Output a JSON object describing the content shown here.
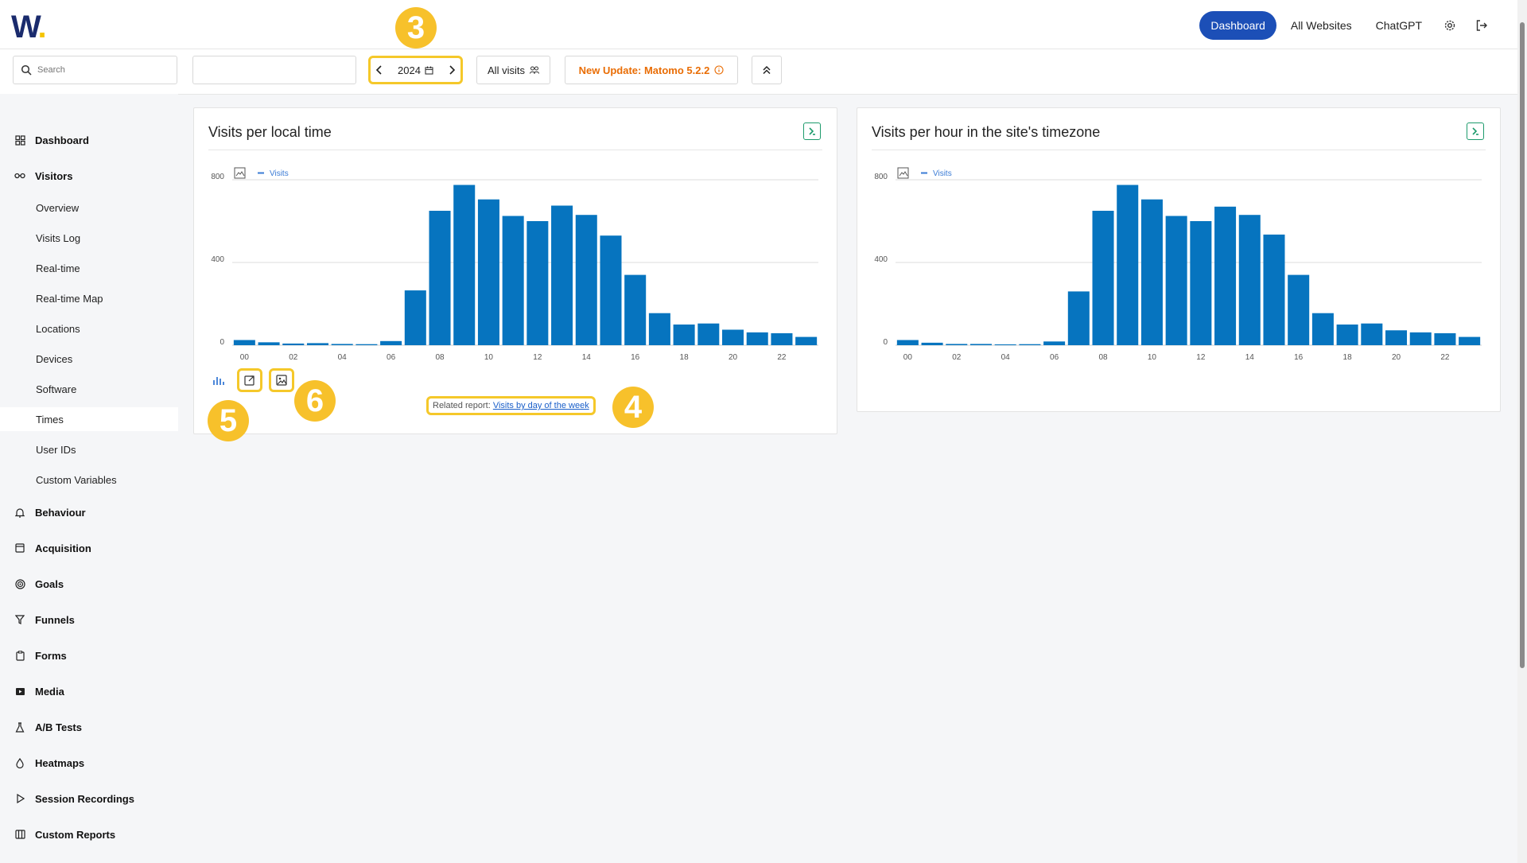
{
  "header": {
    "logo": "W",
    "nav": [
      {
        "label": "Dashboard",
        "active": true
      },
      {
        "label": "All Websites"
      },
      {
        "label": "ChatGPT"
      }
    ]
  },
  "controls": {
    "search_placeholder": "Search",
    "period": "2024",
    "segment": "All visits",
    "update_notice": "New Update: Matomo 5.2.2"
  },
  "sidebar": [
    {
      "label": "Dashboard",
      "type": "category",
      "icon": "grid-icon"
    },
    {
      "label": "Visitors",
      "type": "category",
      "icon": "glasses-icon"
    },
    {
      "label": "Overview",
      "type": "sub"
    },
    {
      "label": "Visits Log",
      "type": "sub"
    },
    {
      "label": "Real-time",
      "type": "sub"
    },
    {
      "label": "Real-time Map",
      "type": "sub"
    },
    {
      "label": "Locations",
      "type": "sub"
    },
    {
      "label": "Devices",
      "type": "sub"
    },
    {
      "label": "Software",
      "type": "sub"
    },
    {
      "label": "Times",
      "type": "sub",
      "active": true
    },
    {
      "label": "User IDs",
      "type": "sub"
    },
    {
      "label": "Custom Variables",
      "type": "sub"
    },
    {
      "label": "Behaviour",
      "type": "category",
      "icon": "bell-icon"
    },
    {
      "label": "Acquisition",
      "type": "category",
      "icon": "window-icon"
    },
    {
      "label": "Goals",
      "type": "category",
      "icon": "target-icon"
    },
    {
      "label": "Funnels",
      "type": "category",
      "icon": "funnel-icon"
    },
    {
      "label": "Forms",
      "type": "category",
      "icon": "clipboard-icon"
    },
    {
      "label": "Media",
      "type": "category",
      "icon": "media-icon"
    },
    {
      "label": "A/B Tests",
      "type": "category",
      "icon": "flask-icon"
    },
    {
      "label": "Heatmaps",
      "type": "category",
      "icon": "drop-icon"
    },
    {
      "label": "Session Recordings",
      "type": "category",
      "icon": "play-icon"
    },
    {
      "label": "Custom Reports",
      "type": "category",
      "icon": "report-icon"
    }
  ],
  "widgets": [
    {
      "title": "Visits per local time",
      "related_prefix": "Related report:",
      "related_link": "Visits by day of the week"
    },
    {
      "title": "Visits per hour in the site's timezone"
    }
  ],
  "annotations": {
    "date": "3",
    "related": "4",
    "export": "5",
    "image": "6"
  },
  "chart_data": [
    {
      "type": "bar",
      "title": "Visits per local time",
      "series": [
        {
          "name": "Visits",
          "values": [
            25,
            14,
            8,
            10,
            6,
            5,
            20,
            265,
            650,
            775,
            705,
            625,
            600,
            675,
            630,
            530,
            340,
            155,
            100,
            105,
            75,
            62,
            58,
            40
          ]
        }
      ],
      "categories": [
        "00",
        "01",
        "02",
        "03",
        "04",
        "05",
        "06",
        "07",
        "08",
        "09",
        "10",
        "11",
        "12",
        "13",
        "14",
        "15",
        "16",
        "17",
        "18",
        "19",
        "20",
        "21",
        "22",
        "23"
      ],
      "tick_labels": [
        "00",
        "02",
        "04",
        "06",
        "08",
        "10",
        "12",
        "14",
        "16",
        "18",
        "20",
        "22"
      ],
      "yticks": [
        0,
        400,
        800
      ],
      "ylim": [
        0,
        800
      ],
      "grid": true,
      "legend": "top-left",
      "color": "#0674bf"
    },
    {
      "type": "bar",
      "title": "Visits per hour in the site's timezone",
      "series": [
        {
          "name": "Visits",
          "values": [
            25,
            12,
            6,
            6,
            4,
            5,
            18,
            260,
            650,
            775,
            705,
            625,
            600,
            670,
            630,
            535,
            340,
            155,
            100,
            105,
            72,
            62,
            58,
            40
          ]
        }
      ],
      "categories": [
        "00",
        "01",
        "02",
        "03",
        "04",
        "05",
        "06",
        "07",
        "08",
        "09",
        "10",
        "11",
        "12",
        "13",
        "14",
        "15",
        "16",
        "17",
        "18",
        "19",
        "20",
        "21",
        "22",
        "23"
      ],
      "tick_labels": [
        "00",
        "02",
        "04",
        "06",
        "08",
        "10",
        "12",
        "14",
        "16",
        "18",
        "20",
        "22"
      ],
      "yticks": [
        0,
        400,
        800
      ],
      "ylim": [
        0,
        800
      ],
      "grid": true,
      "legend": "top-left",
      "color": "#0674bf"
    }
  ]
}
